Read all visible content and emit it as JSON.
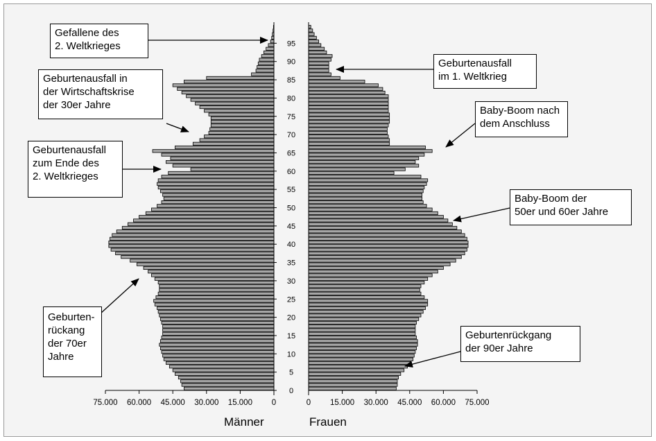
{
  "chart_data": {
    "type": "bar",
    "orientation": "horizontal",
    "y_ticks": [
      0,
      5,
      10,
      15,
      20,
      25,
      30,
      35,
      40,
      45,
      50,
      55,
      60,
      65,
      70,
      75,
      80,
      85,
      90,
      95
    ],
    "x_ticks_left": [
      "75.000",
      "60.000",
      "45.000",
      "30.000",
      "15.000",
      "0"
    ],
    "x_ticks_right": [
      "0",
      "15.000",
      "30.000",
      "45.000",
      "60.000",
      "75.000"
    ],
    "xlim": [
      0,
      75000
    ],
    "ylim": [
      0,
      100
    ],
    "grid": false,
    "series": [
      {
        "name": "Männer",
        "values": [
          40000,
          41000,
          41500,
          42500,
          44000,
          45000,
          46500,
          48000,
          49000,
          49500,
          50000,
          50500,
          51000,
          50500,
          50000,
          49500,
          49500,
          49500,
          50000,
          50500,
          51000,
          51500,
          52000,
          53000,
          53500,
          52500,
          51500,
          51000,
          51000,
          51500,
          53000,
          54500,
          56000,
          58000,
          61000,
          64000,
          68000,
          70500,
          72500,
          73500,
          73500,
          73000,
          72000,
          70000,
          67500,
          65000,
          62500,
          60000,
          57000,
          54500,
          52000,
          50000,
          49000,
          49500,
          50500,
          51500,
          52000,
          51500,
          50000,
          47000,
          37000,
          45000,
          48000,
          46000,
          50000,
          54000,
          44000,
          36000,
          33000,
          31000,
          29000,
          28500,
          28000,
          28000,
          28000,
          29000,
          31000,
          33000,
          35000,
          37000,
          39000,
          41000,
          43000,
          45000,
          40000,
          30000,
          10000,
          8000,
          7500,
          7000,
          6500,
          5500,
          4500,
          3500,
          2500,
          1500,
          1000,
          700,
          400,
          200
        ]
      },
      {
        "name": "Frauen",
        "values": [
          39000,
          39500,
          39500,
          40000,
          41000,
          42500,
          44000,
          45500,
          46500,
          47000,
          47500,
          48000,
          48500,
          48500,
          48000,
          47500,
          47500,
          47500,
          48000,
          49000,
          50000,
          51000,
          52000,
          53000,
          53000,
          51500,
          50000,
          49500,
          50000,
          51500,
          53000,
          55000,
          57500,
          60000,
          63000,
          65500,
          68000,
          69500,
          70500,
          71000,
          71000,
          70500,
          69500,
          68000,
          66000,
          64000,
          62000,
          60000,
          57500,
          55000,
          52500,
          51000,
          50500,
          50500,
          51000,
          51500,
          52500,
          53000,
          50000,
          38000,
          43000,
          49000,
          47500,
          49000,
          51500,
          55000,
          52000,
          36000,
          36000,
          35500,
          35000,
          35000,
          35500,
          36000,
          36000,
          36000,
          35500,
          35500,
          35500,
          35500,
          35500,
          34000,
          33000,
          31000,
          25000,
          14000,
          10000,
          9000,
          9000,
          9000,
          10000,
          10500,
          8000,
          7000,
          5500,
          4500,
          3500,
          2500,
          1800,
          1000
        ]
      }
    ],
    "xlabel_left": "Männer",
    "xlabel_right": "Frauen",
    "annotations": [
      {
        "id": "a1",
        "text": "Gefallene des\n2. Weltkrieges"
      },
      {
        "id": "a2",
        "text": "Geburtenausfall in\nder Wirtschaftskrise\nder 30er Jahre"
      },
      {
        "id": "a3",
        "text": "Geburtenausfall\nzum Ende des\n2. Weltkrieges"
      },
      {
        "id": "a4",
        "text": "Geburten-\nrückang\nder 70er\nJahre"
      },
      {
        "id": "a5",
        "text": "Geburtenausfall\nim 1. Weltkrieg"
      },
      {
        "id": "a6",
        "text": "Baby-Boom nach\ndem Anschluss"
      },
      {
        "id": "a7",
        "text": "Baby-Boom der\n50er und 60er Jahre"
      },
      {
        "id": "a8",
        "text": "Geburtenrückgang\nder 90er Jahre"
      }
    ],
    "colors": {
      "bar_fill": "#a6a6a6",
      "bar_stroke": "#000000",
      "background": "#f4f4f4"
    }
  }
}
